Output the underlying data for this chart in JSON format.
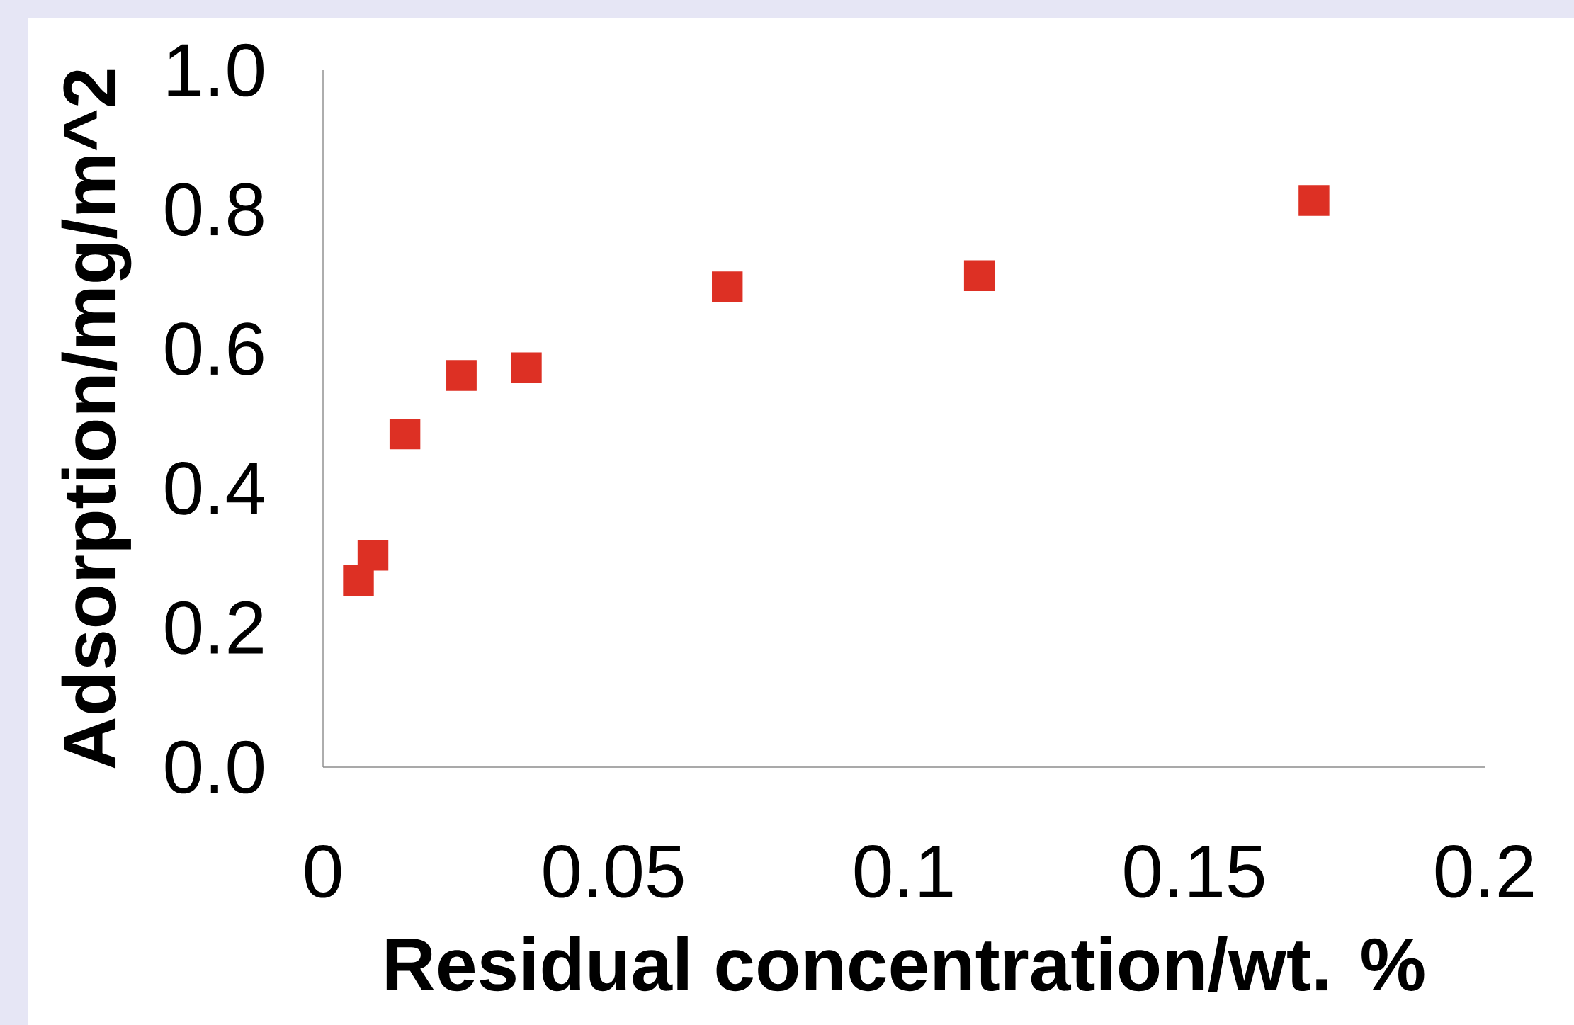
{
  "chart_data": {
    "type": "scatter",
    "xlabel": "Residual concentration/wt. %",
    "ylabel": "Adsorption/mg/m^2",
    "x": [
      0.0061,
      0.0086,
      0.0141,
      0.0238,
      0.035,
      0.0696,
      0.113,
      0.1706
    ],
    "values": [
      0.268,
      0.304,
      0.478,
      0.562,
      0.573,
      0.689,
      0.705,
      0.813
    ],
    "color": "#dd3024",
    "marker": "square",
    "xlim": [
      0,
      0.2
    ],
    "xticks": [
      0,
      0.05,
      0.1,
      0.15,
      0.2
    ],
    "ylim": [
      0,
      1.0
    ],
    "yticks": [
      {
        "value": 0,
        "label": "0.0"
      },
      {
        "value": 0.2,
        "label": "0.2"
      },
      {
        "value": 0.4,
        "label": "0.4"
      },
      {
        "value": 0.6,
        "label": "0.6"
      },
      {
        "value": 0.8,
        "label": "0.8"
      },
      {
        "value": 1.0,
        "label": "1.0"
      }
    ],
    "grid": false
  }
}
